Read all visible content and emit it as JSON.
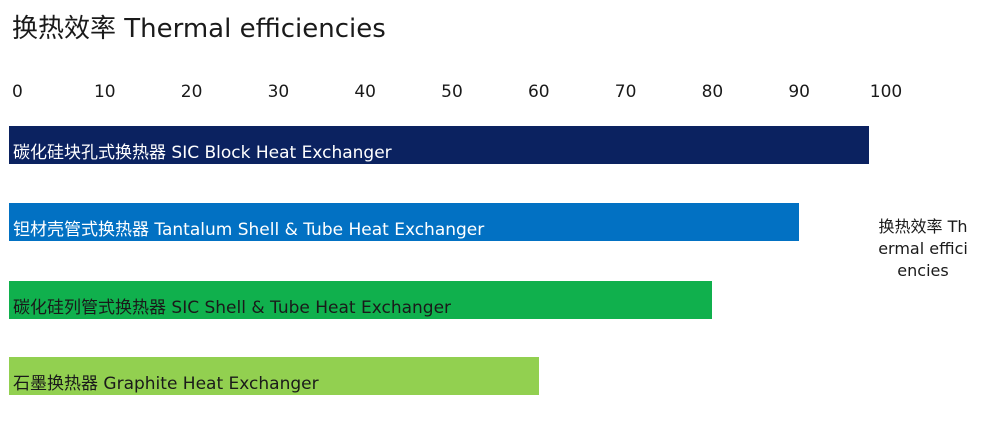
{
  "chart_data": {
    "type": "bar",
    "orientation": "horizontal",
    "title": "换热效率 Thermal efficiencies",
    "xlim": [
      0,
      100
    ],
    "ticks": [
      "0",
      "10",
      "20",
      "30",
      "40",
      "50",
      "60",
      "70",
      "80",
      "90",
      "100"
    ],
    "categories": [
      "碳化硅块孔式换热器 SIC Block Heat Exchanger",
      "钽材壳管式换热器 Tantalum Shell & Tube Heat Exchanger",
      "碳化硅列管式换热器 SIC Shell & Tube Heat Exchanger",
      "石墨换热器 Graphite Heat Exchanger"
    ],
    "series": [
      {
        "name": "换热效率 Thermal efficiencies",
        "values": [
          98,
          90,
          80,
          60
        ]
      }
    ],
    "colors": [
      "#0b2260",
      "#0271c3",
      "#10b04d",
      "#92d050"
    ],
    "legend": "right"
  }
}
